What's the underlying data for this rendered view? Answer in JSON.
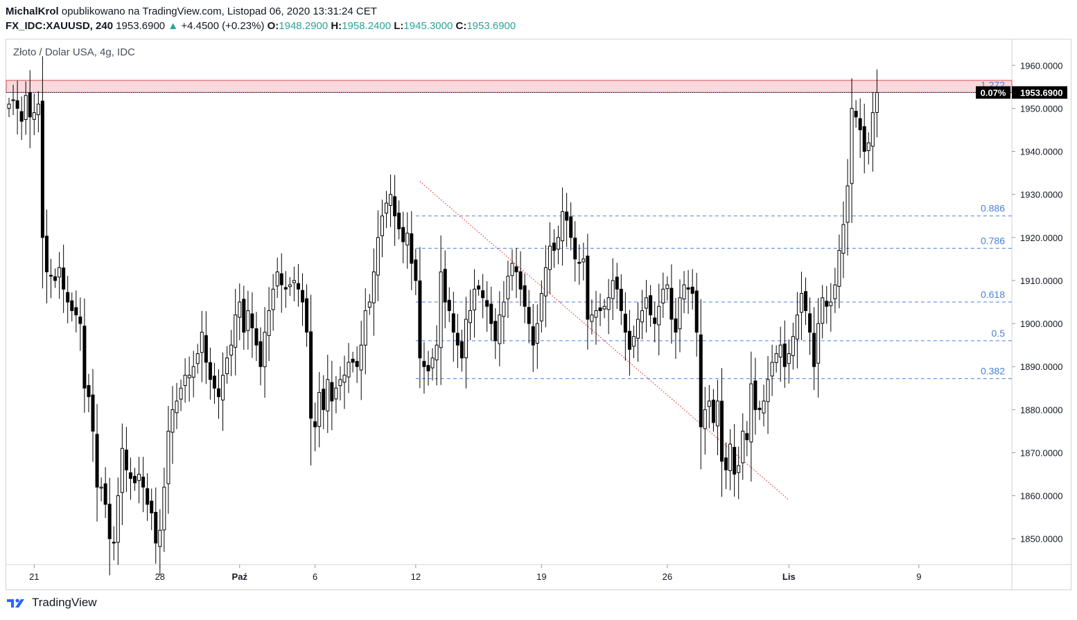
{
  "header": {
    "author": "MichalKrol",
    "published": "opublikowano na TradingView.com, Listopad 06, 2020 13:31:24 CET",
    "symbol": "FX_IDC:XAUUSD, 240",
    "last": "1953.6900",
    "change": "+4.4500 (+0.23%)",
    "open_label": "O:",
    "open": "1948.2900",
    "high_label": "H:",
    "high": "1958.2400",
    "low_label": "L:",
    "low": "1945.3000",
    "close_label": "C:",
    "close": "1953.6900"
  },
  "pane_title": "Złoto / Dolar USA, 4g, IDC",
  "price_badge": {
    "pct": "0.07%",
    "price": "1953.6900"
  },
  "footer": {
    "brand": "TradingView"
  },
  "colors": {
    "up": "#26a69a",
    "fib": "#4a7fd8",
    "zone": "#f8c9cd",
    "zone_edge": "#e0616b",
    "trend": "#e53935"
  },
  "chart_data": {
    "type": "candlestick",
    "ylim": [
      1844,
      1966
    ],
    "y_ticks": [
      "1960.0000",
      "1950.0000",
      "1940.0000",
      "1930.0000",
      "1920.0000",
      "1910.0000",
      "1900.0000",
      "1890.0000",
      "1880.0000",
      "1870.0000",
      "1860.0000",
      "1850.0000"
    ],
    "x_ticks": [
      {
        "label": "21",
        "bar": 6
      },
      {
        "label": "28",
        "bar": 36
      },
      {
        "label": "Paź",
        "bar": 55
      },
      {
        "label": "6",
        "bar": 73
      },
      {
        "label": "12",
        "bar": 97
      },
      {
        "label": "19",
        "bar": 127
      },
      {
        "label": "26",
        "bar": 157
      },
      {
        "label": "Lis",
        "bar": 186
      },
      {
        "label": "9",
        "bar": 217
      }
    ],
    "fib_levels": [
      {
        "label": "1.272",
        "value": 1953.7
      },
      {
        "label": "0.886",
        "value": 1925
      },
      {
        "label": "0.786",
        "value": 1917.5
      },
      {
        "label": "0.618",
        "value": 1905
      },
      {
        "label": "0.5",
        "value": 1896
      },
      {
        "label": "0.382",
        "value": 1887.2
      }
    ],
    "resistance_zone": [
      1953.7,
      1956.5
    ],
    "trendline": {
      "from": {
        "bar": 98,
        "price": 1933
      },
      "to": {
        "bar": 186,
        "price": 1859
      }
    },
    "closes": [
      1951,
      1952,
      1950,
      1947,
      1953,
      1948,
      1949,
      1951,
      1920,
      1912,
      1911,
      1910,
      1913,
      1908,
      1905,
      1903,
      1902,
      1900,
      1885,
      1883,
      1875,
      1862,
      1862,
      1858,
      1850,
      1849,
      1860,
      1871,
      1866,
      1864,
      1863,
      1865,
      1862,
      1858,
      1856,
      1849,
      1852,
      1862,
      1875,
      1880,
      1882,
      1885,
      1888,
      1888,
      1890,
      1893,
      1898,
      1891,
      1887,
      1885,
      1883,
      1888,
      1892,
      1895,
      1902,
      1905,
      1898,
      1903,
      1899,
      1895,
      1890,
      1898,
      1903,
      1908,
      1912,
      1909,
      1908,
      1909,
      1910,
      1908,
      1905,
      1898,
      1878,
      1876,
      1884,
      1880,
      1887,
      1882,
      1885,
      1887,
      1888,
      1891,
      1891,
      1890,
      1895,
      1903,
      1905,
      1912,
      1920,
      1925,
      1928,
      1930,
      1925,
      1922,
      1919,
      1921,
      1914,
      1910,
      1892,
      1890,
      1889,
      1892,
      1895,
      1912,
      1905,
      1903,
      1898,
      1895,
      1892,
      1901,
      1903,
      1908,
      1908,
      1906,
      1904,
      1900,
      1896,
      1902,
      1905,
      1911,
      1914,
      1912,
      1908,
      1904,
      1900,
      1895,
      1900,
      1907,
      1913,
      1918,
      1917,
      1920,
      1926,
      1924,
      1920,
      1915,
      1914,
      1915,
      1901,
      1902,
      1903,
      1903,
      1904,
      1906,
      1910,
      1908,
      1903,
      1898,
      1894,
      1897,
      1901,
      1903,
      1906,
      1902,
      1900,
      1904,
      1908,
      1909,
      1901,
      1898,
      1906,
      1909,
      1908,
      1907,
      1898,
      1876,
      1880,
      1882,
      1877,
      1882,
      1868,
      1866,
      1872,
      1865,
      1867,
      1875,
      1873,
      1886,
      1880,
      1880,
      1882,
      1887,
      1891,
      1893,
      1895,
      1890,
      1893,
      1897,
      1902,
      1907,
      1903,
      1898,
      1890,
      1900,
      1906,
      1904,
      1905,
      1909,
      1917,
      1923,
      1932,
      1950,
      1948,
      1945,
      1940,
      1942,
      1949,
      1953.69
    ]
  }
}
